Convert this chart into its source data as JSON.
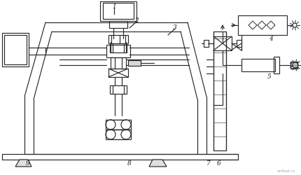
{
  "line_color": "#2a2a2a",
  "bg_color": "#ffffff",
  "watermark": "avfleet.ru"
}
